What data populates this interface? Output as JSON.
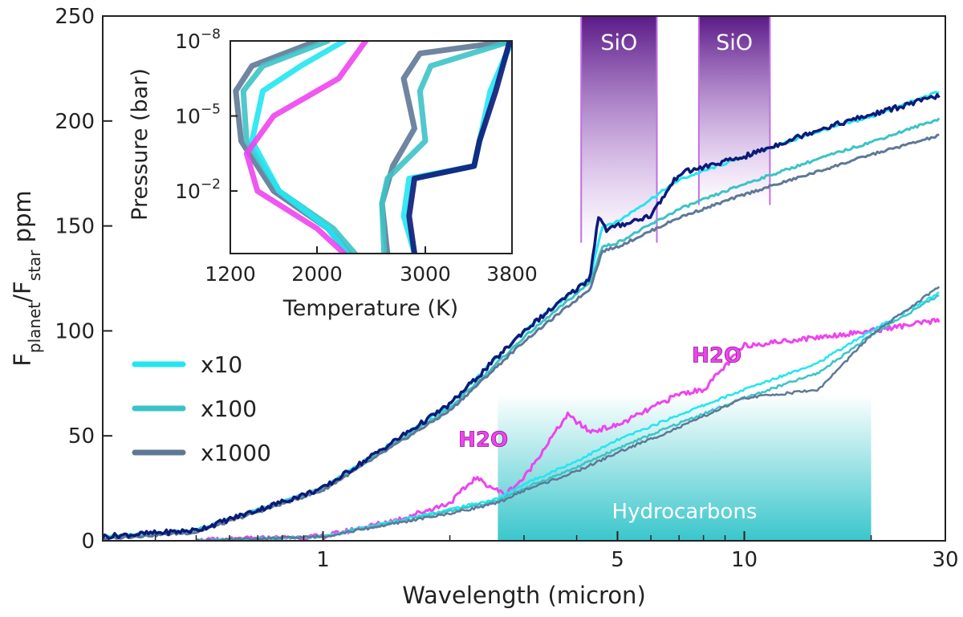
{
  "colors": {
    "x10": "#22e6f2",
    "x100": "#3cc3c6",
    "x1000": "#5f7896",
    "dark": "#0c1a78",
    "h2o": "#ee44ee",
    "sio": "#5a1a86",
    "hydro": "#2fc3c9"
  },
  "chart_data": [
    {
      "type": "line",
      "xlabel": "Wavelength (micron)",
      "ylabel_main": "F",
      "ylabel_sub1": "planet",
      "ylabel_mid": "/F",
      "ylabel_sub2": "star",
      "ylabel_tail": " ppm",
      "xscale": "log",
      "xlim": [
        0.3,
        30
      ],
      "ylim": [
        0,
        250
      ],
      "x_ticks": [
        1,
        5,
        10,
        30
      ],
      "x_tick_labels": [
        "1",
        "5",
        "10",
        "30"
      ],
      "y_ticks": [
        0,
        50,
        100,
        150,
        200,
        250
      ],
      "y_tick_labels": [
        "0",
        "50",
        "100",
        "150",
        "200",
        "250"
      ],
      "legend": {
        "placement": "left-middle",
        "entries": [
          {
            "label": "x10",
            "color": "#22e6f2"
          },
          {
            "label": "x100",
            "color": "#3cc3c6"
          },
          {
            "label": "x1000",
            "color": "#5f7896"
          }
        ]
      },
      "bands": [
        {
          "label": "SiO",
          "x": [
            4.1,
            6.2
          ],
          "y": [
            142,
            250
          ]
        },
        {
          "label": "SiO",
          "x": [
            7.8,
            11.5
          ],
          "y": [
            160,
            250
          ]
        },
        {
          "label": "Hydrocarbons",
          "x": [
            2.6,
            20
          ],
          "y": [
            0,
            70
          ]
        }
      ],
      "annotations": [
        {
          "text": "H2O",
          "x": 2.4,
          "y": 45
        },
        {
          "text": "H2O",
          "x": 8.6,
          "y": 85
        }
      ],
      "series": [
        {
          "key": "hot_x10",
          "color": "#22e6f2",
          "width": 3,
          "x": [
            0.3,
            0.5,
            1,
            2,
            3,
            4.3,
            4.6,
            5,
            7,
            10,
            15,
            20,
            29
          ],
          "y": [
            2,
            5,
            25,
            65,
            100,
            125,
            150,
            152,
            172,
            183,
            195,
            202,
            214
          ]
        },
        {
          "key": "hot_x100",
          "color": "#3cc3c6",
          "width": 3,
          "x": [
            0.3,
            0.5,
            1,
            2,
            3,
            4.3,
            4.6,
            5,
            7,
            10,
            15,
            20,
            29
          ],
          "y": [
            1,
            5,
            25,
            63,
            97,
            123,
            140,
            142,
            158,
            170,
            182,
            190,
            201
          ]
        },
        {
          "key": "hot_x1000",
          "color": "#5f7896",
          "width": 3,
          "x": [
            0.3,
            0.5,
            1,
            2,
            3,
            4.3,
            4.6,
            5,
            7,
            10,
            15,
            20,
            29
          ],
          "y": [
            1,
            4,
            24,
            62,
            95,
            120,
            138,
            140,
            154,
            165,
            176,
            184,
            193
          ]
        },
        {
          "key": "hot_dark",
          "color": "#0c1a78",
          "width": 3.5,
          "x": [
            0.3,
            0.5,
            1,
            2,
            3,
            4.3,
            4.5,
            4.7,
            5,
            6,
            7,
            10,
            15,
            20,
            29
          ],
          "y": [
            2,
            5,
            25,
            65,
            100,
            125,
            155,
            148,
            150,
            155,
            175,
            183,
            196,
            203,
            212
          ]
        },
        {
          "key": "cool_h2o",
          "color": "#ee44ee",
          "width": 3,
          "x": [
            0.5,
            1,
            1.5,
            2,
            2.3,
            2.7,
            3,
            3.8,
            4.3,
            5,
            6,
            7,
            8,
            10,
            15,
            20,
            29
          ],
          "y": [
            0,
            2,
            10,
            18,
            30,
            22,
            30,
            60,
            52,
            55,
            63,
            70,
            72,
            93,
            97,
            100,
            105
          ]
        },
        {
          "key": "cool_x10",
          "color": "#22e6f2",
          "width": 2.5,
          "x": [
            0.5,
            1,
            2,
            2.6,
            3,
            4,
            5,
            7,
            10,
            15,
            20,
            29
          ],
          "y": [
            0,
            2,
            15,
            20,
            27,
            38,
            48,
            60,
            72,
            85,
            100,
            118
          ]
        },
        {
          "key": "cool_x100",
          "color": "#3cc3c6",
          "width": 2.5,
          "x": [
            0.5,
            1,
            2,
            2.6,
            3,
            4,
            5,
            7,
            10,
            15,
            20,
            29
          ],
          "y": [
            0,
            2,
            14,
            19,
            25,
            35,
            44,
            56,
            68,
            80,
            98,
            117
          ]
        },
        {
          "key": "cool_x1000",
          "color": "#5f7896",
          "width": 2.5,
          "x": [
            0.5,
            1,
            2,
            2.6,
            3,
            4,
            5,
            7,
            10,
            15,
            20,
            29
          ],
          "y": [
            0,
            2,
            13,
            18,
            24,
            33,
            42,
            54,
            68,
            72,
            98,
            121
          ]
        }
      ]
    },
    {
      "type": "line",
      "xlabel": "Temperature (K)",
      "ylabel": "Pressure (bar)",
      "yscale": "log",
      "y_inverted": true,
      "xlim": [
        1200,
        3800
      ],
      "ylim_exponent": [
        -8,
        0.5
      ],
      "x_ticks": [
        1200,
        2000,
        3000,
        3800
      ],
      "x_tick_labels": [
        "1200",
        "2000",
        "3000",
        "3800"
      ],
      "y_tick_base": "10",
      "y_ticks": [
        -8,
        -5,
        -2
      ],
      "y_tick_exponents": [
        "−8",
        "−5",
        "−2"
      ],
      "series": [
        {
          "key": "x1000_cool",
          "color": "#5f7896",
          "temp": [
            2000,
            1400,
            1250,
            1300,
            1600,
            2100,
            2300
          ],
          "log_p": [
            -8,
            -7,
            -6,
            -4,
            -2,
            -0.5,
            0.5
          ]
        },
        {
          "key": "x100_cool",
          "color": "#3cc3c6",
          "temp": [
            2100,
            1500,
            1320,
            1350,
            1650,
            2150,
            2350
          ],
          "log_p": [
            -8,
            -7,
            -6,
            -4,
            -2,
            -0.5,
            0.5
          ]
        },
        {
          "key": "x10_cool",
          "color": "#22e6f2",
          "temp": [
            2250,
            1850,
            1500,
            1400,
            1650,
            2100,
            2280
          ],
          "log_p": [
            -8,
            -7,
            -6,
            -4,
            -2,
            -0.5,
            0.5
          ]
        },
        {
          "key": "h2o_profile",
          "color": "#ee44ee",
          "temp": [
            2450,
            2200,
            1600,
            1350,
            1450,
            2000,
            2250
          ],
          "log_p": [
            -8,
            -6.5,
            -5,
            -3.5,
            -2,
            -0.5,
            0.5
          ]
        },
        {
          "key": "x1000_hot",
          "color": "#5f7896",
          "temp": [
            3800,
            2950,
            2800,
            2900,
            2700,
            2600,
            2650
          ],
          "log_p": [
            -8,
            -7.5,
            -6.5,
            -4.5,
            -3,
            -1.5,
            0.5
          ]
        },
        {
          "key": "x100_hot",
          "color": "#3cc3c6",
          "temp": [
            3800,
            3050,
            2950,
            3000,
            2650,
            2600,
            2620
          ],
          "log_p": [
            -8,
            -7,
            -6,
            -4,
            -2.5,
            -1.5,
            0.5
          ]
        },
        {
          "key": "x10_hot",
          "color": "#22e6f2",
          "temp": [
            3800,
            3600,
            3500,
            3450,
            2850,
            2800,
            2900
          ],
          "log_p": [
            -8,
            -6,
            -4,
            -3,
            -2.5,
            -1,
            0.5
          ]
        },
        {
          "key": "dark_hot",
          "color": "#0c1a78",
          "temp": [
            3780,
            3650,
            3500,
            3450,
            2900,
            2850,
            2900
          ],
          "log_p": [
            -8,
            -6,
            -4,
            -3,
            -2.5,
            -1,
            0.5
          ]
        }
      ]
    }
  ]
}
